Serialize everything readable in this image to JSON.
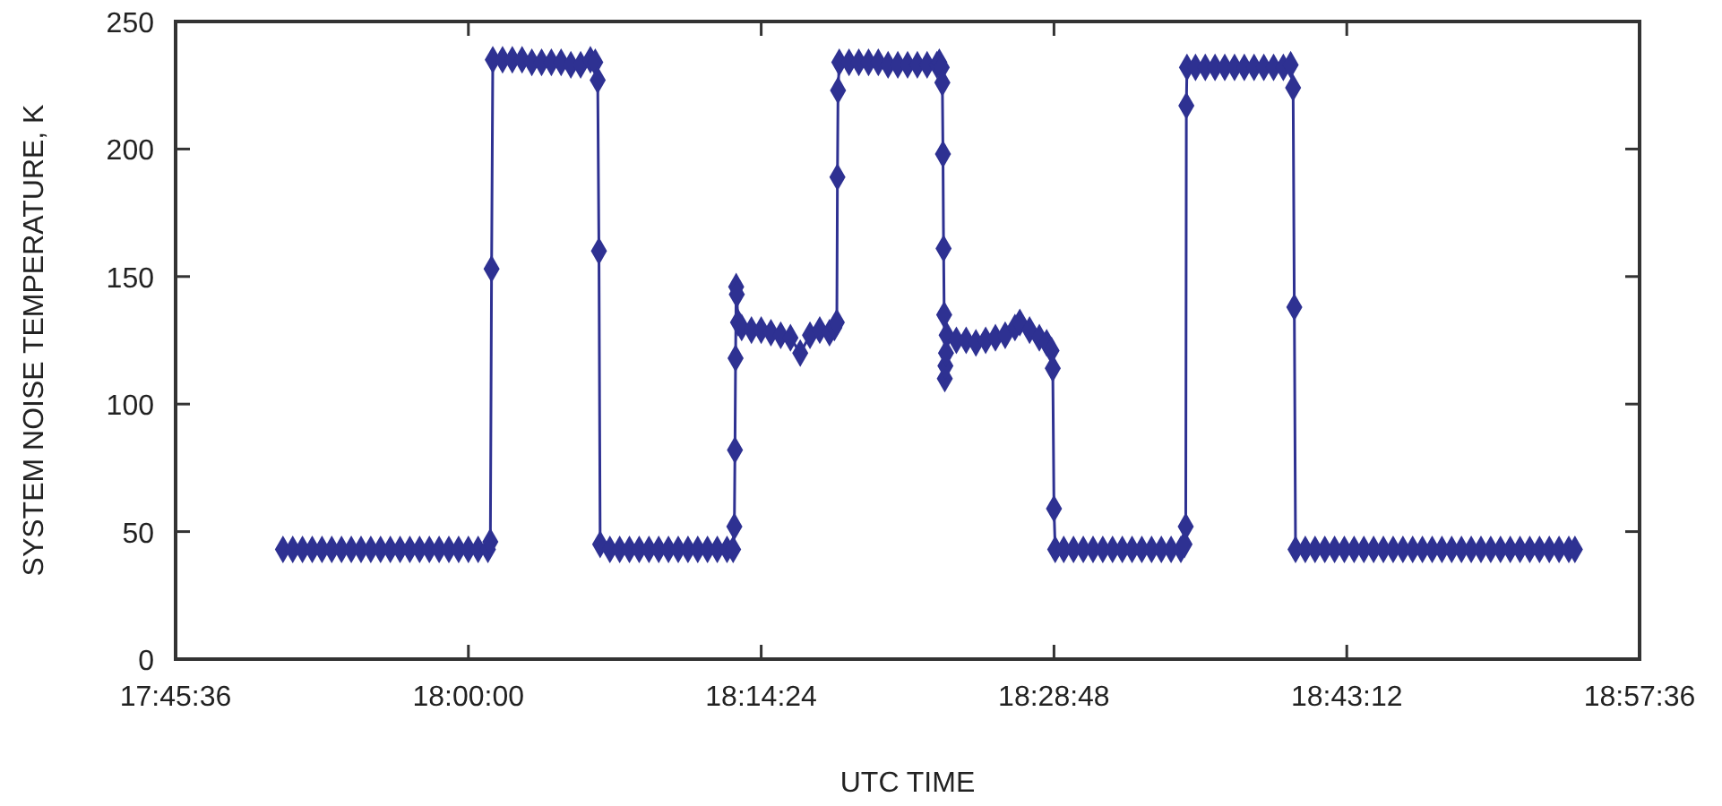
{
  "chart_data": {
    "type": "line",
    "xlabel": "UTC TIME",
    "ylabel": "SYSTEM NOISE TEMPERATURE, K",
    "xlim": [
      17.76,
      18.96
    ],
    "xticks": [
      {
        "value": 17.76,
        "label": "17:45:36"
      },
      {
        "value": 18,
        "label": "18:00:00"
      },
      {
        "value": 18.24,
        "label": "18:14:24"
      },
      {
        "value": 18.48,
        "label": "18:28:48"
      },
      {
        "value": 18.72,
        "label": "18:43:12"
      },
      {
        "value": 18.96,
        "label": "18:57:36"
      }
    ],
    "ylim": [
      0,
      250
    ],
    "yticks": [
      0,
      50,
      100,
      150,
      200,
      250
    ],
    "grid": false,
    "marker": "diamond",
    "line_style": "solid",
    "series": [
      {
        "color": "#2e3192",
        "x": [
          17.848,
          17.856,
          17.864,
          17.872,
          17.88,
          17.888,
          17.896,
          17.904,
          17.912,
          17.92,
          17.928,
          17.936,
          17.944,
          17.952,
          17.96,
          17.968,
          17.976,
          17.984,
          17.992,
          18,
          18.008,
          18.016,
          18.018,
          18.019,
          18.02,
          18.028,
          18.036,
          18.044,
          18.052,
          18.06,
          18.068,
          18.076,
          18.084,
          18.092,
          18.1,
          18.104,
          18.106,
          18.107,
          18.108,
          18.116,
          18.124,
          18.132,
          18.14,
          18.148,
          18.156,
          18.164,
          18.172,
          18.18,
          18.188,
          18.196,
          18.204,
          18.212,
          18.217,
          18.218,
          18.2185,
          18.219,
          18.2195,
          18.22,
          18.221,
          18.224,
          18.232,
          18.24,
          18.248,
          18.256,
          18.264,
          18.272,
          18.28,
          18.288,
          18.296,
          18.3,
          18.302,
          18.3025,
          18.303,
          18.304,
          18.312,
          18.32,
          18.328,
          18.336,
          18.344,
          18.352,
          18.36,
          18.368,
          18.376,
          18.384,
          18.386,
          18.388,
          18.3885,
          18.389,
          18.3895,
          18.39,
          18.3905,
          18.391,
          18.3915,
          18.392,
          18.4,
          18.408,
          18.416,
          18.424,
          18.432,
          18.44,
          18.448,
          18.452,
          18.46,
          18.468,
          18.474,
          18.478,
          18.479,
          18.48,
          18.481,
          18.488,
          18.496,
          18.504,
          18.512,
          18.52,
          18.528,
          18.536,
          18.544,
          18.552,
          18.56,
          18.568,
          18.576,
          18.584,
          18.587,
          18.588,
          18.5885,
          18.589,
          18.596,
          18.604,
          18.612,
          18.62,
          18.628,
          18.636,
          18.644,
          18.652,
          18.66,
          18.668,
          18.674,
          18.676,
          18.677,
          18.678,
          18.686,
          18.694,
          18.702,
          18.71,
          18.718,
          18.726,
          18.734,
          18.742,
          18.75,
          18.758,
          18.766,
          18.774,
          18.782,
          18.79,
          18.798,
          18.806,
          18.814,
          18.822,
          18.83,
          18.838,
          18.846,
          18.854,
          18.862,
          18.87,
          18.878,
          18.886,
          18.894,
          18.902,
          18.907
        ],
        "values": [
          43,
          43,
          43,
          43,
          43,
          43,
          43,
          43,
          43,
          43,
          43,
          43,
          43,
          43,
          43,
          43,
          43,
          43,
          43,
          43,
          43,
          43,
          46,
          153,
          235,
          235,
          235,
          235,
          234,
          234,
          234,
          234,
          233,
          233,
          235,
          234,
          227,
          160,
          45,
          43,
          43,
          43,
          43,
          43,
          43,
          43,
          43,
          43,
          43,
          43,
          43,
          43,
          43,
          52,
          82,
          118,
          146,
          143,
          132,
          130,
          129,
          129,
          128,
          127,
          126,
          120,
          127,
          129,
          128,
          130,
          132,
          189,
          223,
          234,
          234,
          234,
          234,
          234,
          233,
          233,
          233,
          233,
          233,
          233,
          234,
          232,
          226,
          198,
          161,
          135,
          110,
          115,
          120,
          127,
          125,
          125,
          124,
          125,
          126,
          127,
          130,
          132,
          129,
          126,
          124,
          121,
          114,
          59,
          43,
          43,
          43,
          43,
          43,
          43,
          43,
          43,
          43,
          43,
          43,
          43,
          43,
          43,
          45,
          52,
          217,
          232,
          232,
          232,
          232,
          232,
          232,
          232,
          232,
          232,
          232,
          232,
          233,
          224,
          138,
          43,
          43,
          43,
          43,
          43,
          43,
          43,
          43,
          43,
          43,
          43,
          43,
          43,
          43,
          43,
          43,
          43,
          43,
          43,
          43,
          43,
          43,
          43,
          43,
          43,
          43,
          43,
          43,
          43,
          43
        ]
      }
    ]
  }
}
